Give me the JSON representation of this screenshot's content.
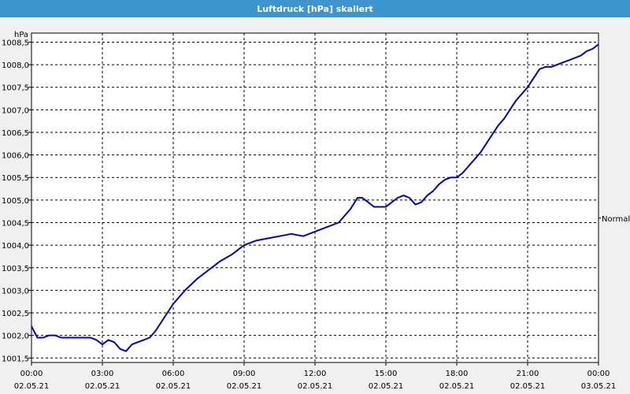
{
  "window": {
    "title": "Luftdruck [hPa] skaliert"
  },
  "chart_data": {
    "type": "line",
    "title": "Luftdruck [hPa] skaliert",
    "ylabel": "hPa",
    "xlabel": "",
    "ylim": [
      1001.4,
      1008.7
    ],
    "xlim": [
      0,
      24
    ],
    "grid": true,
    "y_ticks": [
      {
        "value": 1001.5,
        "label": "1001,5"
      },
      {
        "value": 1002.0,
        "label": "1002,0"
      },
      {
        "value": 1002.5,
        "label": "1002,5"
      },
      {
        "value": 1003.0,
        "label": "1003,0"
      },
      {
        "value": 1003.5,
        "label": "1003,5"
      },
      {
        "value": 1004.0,
        "label": "1004,0"
      },
      {
        "value": 1004.5,
        "label": "1004,5"
      },
      {
        "value": 1005.0,
        "label": "1005,0"
      },
      {
        "value": 1005.5,
        "label": "1005,5"
      },
      {
        "value": 1006.0,
        "label": "1006,0"
      },
      {
        "value": 1006.5,
        "label": "1006,5"
      },
      {
        "value": 1007.0,
        "label": "1007,0"
      },
      {
        "value": 1007.5,
        "label": "1007,5"
      },
      {
        "value": 1008.0,
        "label": "1008,0"
      },
      {
        "value": 1008.5,
        "label": "1008,5"
      }
    ],
    "x_ticks": [
      {
        "value": 0,
        "time": "00:00",
        "date": "02.05.21"
      },
      {
        "value": 3,
        "time": "03:00",
        "date": "02.05.21"
      },
      {
        "value": 6,
        "time": "06:00",
        "date": "02.05.21"
      },
      {
        "value": 9,
        "time": "09:00",
        "date": "02.05.21"
      },
      {
        "value": 12,
        "time": "12:00",
        "date": "02.05.21"
      },
      {
        "value": 15,
        "time": "15:00",
        "date": "02.05.21"
      },
      {
        "value": 18,
        "time": "18:00",
        "date": "02.05.21"
      },
      {
        "value": 21,
        "time": "21:00",
        "date": "02.05.21"
      },
      {
        "value": 24,
        "time": "00:00",
        "date": "03.05.21"
      }
    ],
    "annotation": {
      "label": "Normal",
      "value": 1004.6
    },
    "series": [
      {
        "color": "#0000c8",
        "x": [
          0.0,
          0.25,
          0.5,
          0.75,
          1.0,
          1.25,
          1.5,
          1.75,
          2.0,
          2.25,
          2.5,
          2.75,
          3.0,
          3.25,
          3.5,
          3.75,
          4.0,
          4.25,
          4.5,
          4.75,
          5.0,
          5.25,
          5.5,
          5.75,
          6.0,
          6.5,
          7.0,
          7.5,
          8.0,
          8.5,
          9.0,
          9.5,
          10.0,
          10.5,
          11.0,
          11.5,
          12.0,
          12.5,
          13.0,
          13.5,
          13.8,
          14.0,
          14.25,
          14.5,
          14.75,
          15.0,
          15.25,
          15.5,
          15.75,
          16.0,
          16.25,
          16.5,
          16.75,
          17.0,
          17.25,
          17.5,
          17.75,
          18.0,
          18.25,
          18.5,
          18.75,
          19.0,
          19.25,
          19.5,
          19.75,
          20.0,
          20.25,
          20.5,
          20.75,
          21.0,
          21.25,
          21.5,
          21.75,
          22.0,
          22.25,
          22.5,
          22.75,
          23.0,
          23.25,
          23.5,
          23.75,
          24.0
        ],
        "y": [
          1002.2,
          1001.95,
          1001.95,
          1002.0,
          1002.0,
          1001.95,
          1001.95,
          1001.95,
          1001.95,
          1001.95,
          1001.95,
          1001.9,
          1001.8,
          1001.9,
          1001.85,
          1001.7,
          1001.65,
          1001.8,
          1001.85,
          1001.9,
          1001.95,
          1002.1,
          1002.3,
          1002.5,
          1002.7,
          1003.0,
          1003.25,
          1003.45,
          1003.65,
          1003.8,
          1004.0,
          1004.1,
          1004.15,
          1004.2,
          1004.25,
          1004.2,
          1004.3,
          1004.4,
          1004.5,
          1004.8,
          1005.05,
          1005.05,
          1004.95,
          1004.85,
          1004.85,
          1004.85,
          1004.95,
          1005.05,
          1005.1,
          1005.05,
          1004.9,
          1004.95,
          1005.1,
          1005.2,
          1005.35,
          1005.45,
          1005.5,
          1005.5,
          1005.6,
          1005.75,
          1005.9,
          1006.05,
          1006.25,
          1006.45,
          1006.65,
          1006.8,
          1007.0,
          1007.2,
          1007.35,
          1007.5,
          1007.7,
          1007.9,
          1007.95,
          1007.95,
          1008.0,
          1008.05,
          1008.1,
          1008.15,
          1008.2,
          1008.3,
          1008.35,
          1008.45
        ]
      }
    ]
  }
}
